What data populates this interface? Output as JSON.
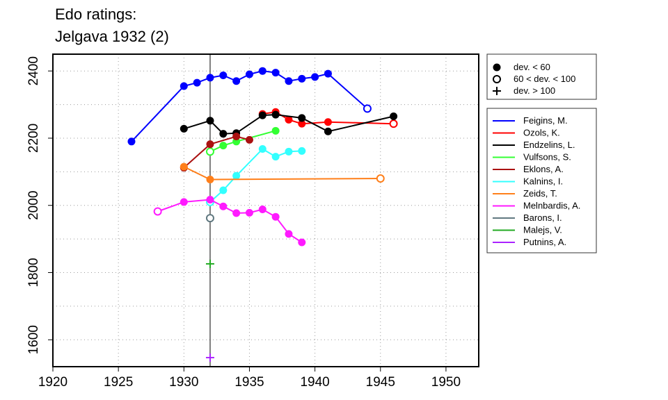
{
  "chart_data": {
    "type": "line",
    "title": "Edo ratings:",
    "subtitle": "Jelgava 1932 (2)",
    "xlabel": "",
    "ylabel": "",
    "xlim": [
      1920,
      1952.5
    ],
    "ylim": [
      1520,
      2450
    ],
    "x_ticks": [
      1920,
      1925,
      1930,
      1935,
      1940,
      1945,
      1950
    ],
    "y_ticks": [
      1600,
      1800,
      2000,
      2200,
      2400
    ],
    "gridlines": [
      1925,
      1930,
      1935,
      1940,
      1945,
      1950
    ],
    "y_gridlines": [
      1600,
      1700,
      1800,
      1900,
      2000,
      2100,
      2200,
      2300,
      2400
    ],
    "grid": true,
    "event_year": 1932,
    "marker_legend": [
      {
        "symbol": "filled",
        "label": "dev. < 60"
      },
      {
        "symbol": "open",
        "label": "60 < dev. < 100"
      },
      {
        "symbol": "plus",
        "label": "dev. > 100"
      }
    ],
    "legend_position": "right",
    "series": [
      {
        "name": "Feigins, M.",
        "color": "#0000ff",
        "points": [
          [
            1926,
            2190,
            "f"
          ],
          [
            1930,
            2355,
            "f"
          ],
          [
            1931,
            2365,
            "f"
          ],
          [
            1932,
            2380,
            "f"
          ],
          [
            1933,
            2387,
            "f"
          ],
          [
            1934,
            2370,
            "f"
          ],
          [
            1935,
            2390,
            "f"
          ],
          [
            1936,
            2400,
            "f"
          ],
          [
            1937,
            2395,
            "f"
          ],
          [
            1938,
            2370,
            "f"
          ],
          [
            1939,
            2377,
            "f"
          ],
          [
            1940,
            2382,
            "f"
          ],
          [
            1941,
            2392,
            "f"
          ],
          [
            1944,
            2288,
            "o"
          ]
        ]
      },
      {
        "name": "Ozols, K.",
        "color": "#ff0000",
        "points": [
          [
            1936,
            2272,
            "f"
          ],
          [
            1937,
            2278,
            "f"
          ],
          [
            1938,
            2255,
            "f"
          ],
          [
            1939,
            2243,
            "f"
          ],
          [
            1941,
            2248,
            "f"
          ],
          [
            1946,
            2243,
            "o"
          ]
        ]
      },
      {
        "name": "Endzelins, L.",
        "color": "#000000",
        "points": [
          [
            1930,
            2228,
            "f"
          ],
          [
            1932,
            2252,
            "f"
          ],
          [
            1933,
            2213,
            "f"
          ],
          [
            1934,
            2215,
            "f"
          ],
          [
            1936,
            2268,
            "f"
          ],
          [
            1937,
            2270,
            "f"
          ],
          [
            1939,
            2260,
            "f"
          ],
          [
            1941,
            2220,
            "f"
          ],
          [
            1946,
            2265,
            "f"
          ]
        ]
      },
      {
        "name": "Vulfsons, S.",
        "color": "#33ff33",
        "points": [
          [
            1932,
            2160,
            "o"
          ],
          [
            1933,
            2178,
            "f"
          ],
          [
            1934,
            2190,
            "f"
          ],
          [
            1937,
            2222,
            "f"
          ]
        ]
      },
      {
        "name": "Eklons, A.",
        "color": "#aa1111",
        "points": [
          [
            1930,
            2112,
            "f"
          ],
          [
            1932,
            2182,
            "f"
          ],
          [
            1934,
            2205,
            "f"
          ],
          [
            1935,
            2195,
            "f"
          ]
        ]
      },
      {
        "name": "Kalnins, I.",
        "color": "#33ffff",
        "points": [
          [
            1932,
            2010,
            "o"
          ],
          [
            1933,
            2045,
            "f"
          ],
          [
            1934,
            2088,
            "f"
          ],
          [
            1936,
            2168,
            "f"
          ],
          [
            1937,
            2145,
            "f"
          ],
          [
            1938,
            2160,
            "f"
          ],
          [
            1939,
            2162,
            "f"
          ]
        ]
      },
      {
        "name": "Zeids, T.",
        "color": "#ff7f1a",
        "points": [
          [
            1930,
            2115,
            "f"
          ],
          [
            1932,
            2077,
            "f"
          ],
          [
            1945,
            2080,
            "o"
          ]
        ]
      },
      {
        "name": "Melnbardis, A.",
        "color": "#ff1aff",
        "points": [
          [
            1928,
            1982,
            "o"
          ],
          [
            1930,
            2010,
            "f"
          ],
          [
            1932,
            2017,
            "f"
          ],
          [
            1933,
            1997,
            "f"
          ],
          [
            1934,
            1977,
            "f"
          ],
          [
            1935,
            1978,
            "f"
          ],
          [
            1936,
            1988,
            "f"
          ],
          [
            1937,
            1966,
            "f"
          ],
          [
            1938,
            1915,
            "f"
          ],
          [
            1939,
            1890,
            "f"
          ]
        ]
      },
      {
        "name": "Barons, I.",
        "color": "#607880",
        "points": [
          [
            1932,
            1962,
            "o"
          ]
        ]
      },
      {
        "name": "Malejs, V.",
        "color": "#22aa22",
        "points": [
          [
            1932,
            1826,
            "p"
          ]
        ]
      },
      {
        "name": "Putnins, A.",
        "color": "#aa22ff",
        "points": [
          [
            1932,
            1547,
            "p"
          ]
        ]
      }
    ]
  }
}
